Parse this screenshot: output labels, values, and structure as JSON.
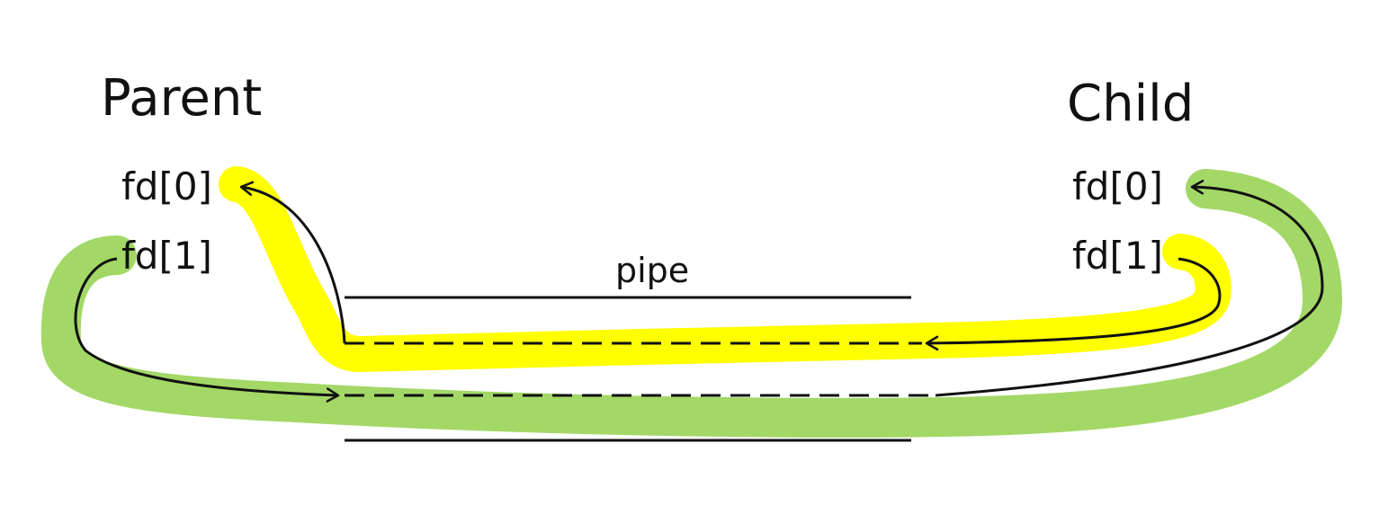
{
  "parent": {
    "title": "Parent",
    "fd0": "fd[0]",
    "fd1": "fd[1]"
  },
  "child": {
    "title": "Child",
    "fd0": "fd[0]",
    "fd1": "fd[1]"
  },
  "pipe": {
    "label": "pipe"
  },
  "colors": {
    "ink": "#111111",
    "highlight_yellow": "#ffff00",
    "highlight_green": "#a3d867",
    "background": "#ffffff"
  }
}
